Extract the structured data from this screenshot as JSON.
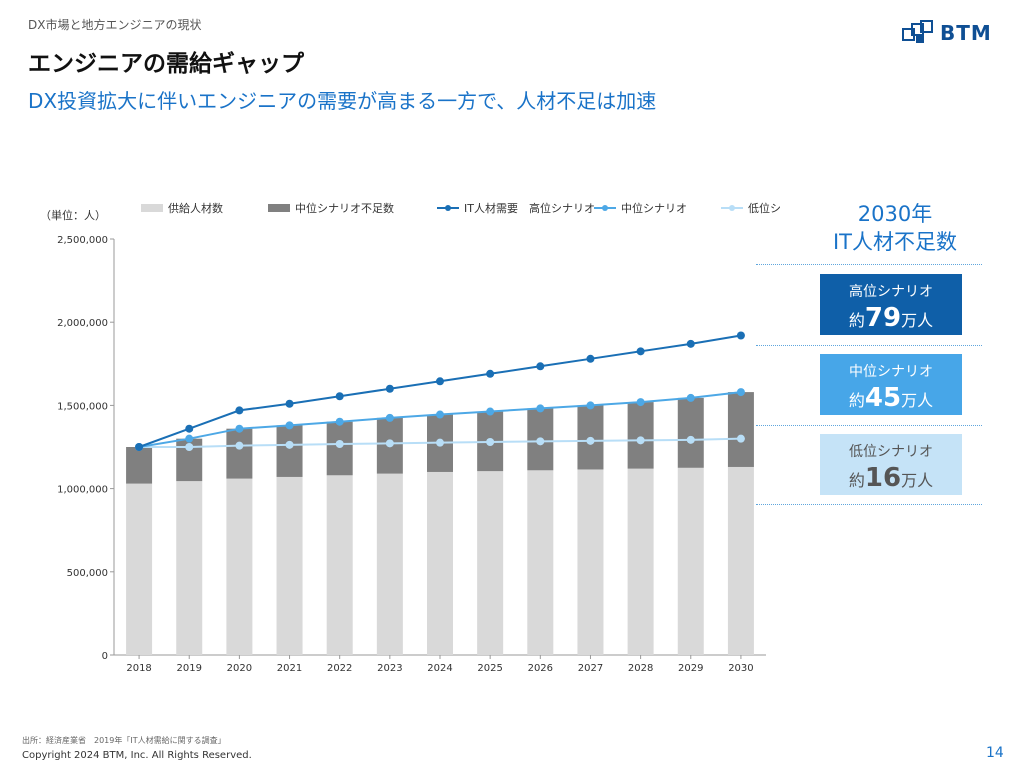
{
  "header": {
    "breadcrumb": "DX市場と地方エンジニアの現状",
    "title": "エンジニアの需給ギャップ",
    "subtitle": "DX投資拡大に伴いエンジニアの需要が高まる一方で、人材不足は加速"
  },
  "logo": {
    "text": "BTM"
  },
  "summary": {
    "title_line1": "2030年",
    "title_line2": "IT人材不足数",
    "scenarios": [
      {
        "name": "高位シナリオ",
        "prefix": "約",
        "number": "79",
        "unit": "万人"
      },
      {
        "name": "中位シナリオ",
        "prefix": "約",
        "number": "45",
        "unit": "万人"
      },
      {
        "name": "低位シナリオ",
        "prefix": "約",
        "number": "16",
        "unit": "万人"
      }
    ]
  },
  "colors": {
    "supply": "#d9d9d9",
    "shortage": "#808080",
    "demand_high": "#1a6fb5",
    "demand_mid": "#4da8e6",
    "demand_low": "#b8def7",
    "accent": "#1a73c8",
    "box_high": "#0f5fa8",
    "box_mid": "#47a6e8",
    "box_low": "#c5e3f7"
  },
  "chart_data": {
    "type": "bar",
    "unit_label": "（単位：人）",
    "categories": [
      "2018",
      "2019",
      "2020",
      "2021",
      "2022",
      "2023",
      "2024",
      "2025",
      "2026",
      "2027",
      "2028",
      "2029",
      "2030"
    ],
    "ylim": [
      0,
      2500000
    ],
    "yticks": [
      0,
      500000,
      1000000,
      1500000,
      2000000,
      2500000
    ],
    "ytick_labels": [
      "0",
      "500,000",
      "1,000,000",
      "1,500,000",
      "2,000,000",
      "2,500,000"
    ],
    "legend_position": "top",
    "series": [
      {
        "name": "供給人材数",
        "kind": "bar",
        "values": [
          1030000,
          1045000,
          1060000,
          1070000,
          1080000,
          1090000,
          1100000,
          1105000,
          1110000,
          1115000,
          1120000,
          1125000,
          1130000
        ]
      },
      {
        "name": "中位シナリオ不足数",
        "kind": "bar-stacked",
        "values": [
          220000,
          255000,
          300000,
          310000,
          322000,
          335000,
          345000,
          358000,
          372000,
          385000,
          400000,
          420000,
          450000
        ]
      },
      {
        "name": "IT人材需要　高位シナリオ",
        "kind": "line",
        "values": [
          1250000,
          1360000,
          1470000,
          1510000,
          1555000,
          1600000,
          1645000,
          1690000,
          1735000,
          1780000,
          1825000,
          1870000,
          1920000
        ]
      },
      {
        "name": "中位シナリオ",
        "kind": "line",
        "values": [
          1250000,
          1300000,
          1360000,
          1380000,
          1402000,
          1425000,
          1445000,
          1463000,
          1482000,
          1500000,
          1520000,
          1545000,
          1580000
        ]
      },
      {
        "name": "低位シナリオ",
        "kind": "line",
        "values": [
          1250000,
          1250000,
          1258000,
          1263000,
          1268000,
          1272000,
          1276000,
          1280000,
          1284000,
          1287000,
          1290000,
          1293000,
          1300000
        ]
      }
    ]
  },
  "footer": {
    "source": "出所：経済産業省　2019年「IT人材需給に関する調査」",
    "copyright": "Copyright 2024 BTM, Inc. All Rights Reserved.",
    "page_number": "14"
  }
}
